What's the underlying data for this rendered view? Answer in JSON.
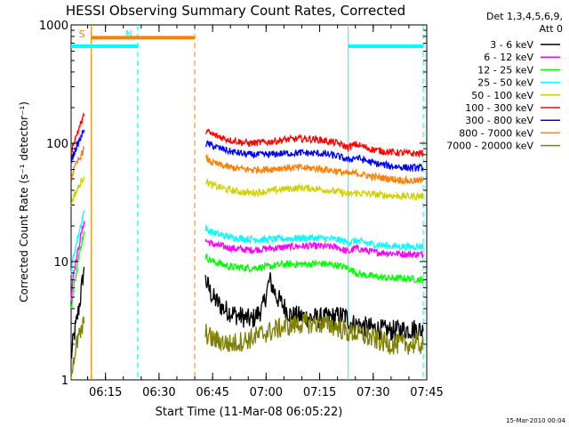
{
  "chart_data": {
    "type": "line",
    "title": "HESSI Observing Summary Count Rates, Corrected",
    "xlabel": "Start Time (11-Mar-08 06:05:22)",
    "ylabel": "Corrected Count Rate (s⁻¹ detector⁻¹)",
    "y_scale": "log",
    "ylim": [
      1,
      1000
    ],
    "xlim": [
      "06:05:22",
      "07:45:00"
    ],
    "x_ticks": [
      "06:15",
      "06:30",
      "06:45",
      "07:00",
      "07:15",
      "07:30",
      "07:45"
    ],
    "y_ticks": [
      "1",
      "10",
      "100",
      "1000"
    ],
    "legend": {
      "placement": "right",
      "header": [
        "Det 1,3,4,5,6,9,",
        "Att 0"
      ],
      "entries": [
        {
          "label": "3 - 6 keV",
          "color": "#000000"
        },
        {
          "label": "6 - 12 keV",
          "color": "#ff00ff"
        },
        {
          "label": "12 - 25 keV",
          "color": "#00ff00"
        },
        {
          "label": "25 - 50 keV",
          "color": "#00ffff"
        },
        {
          "label": "50 - 100 keV",
          "color": "#d0d000"
        },
        {
          "label": "100 - 300 keV",
          "color": "#ff0000"
        },
        {
          "label": "300 - 800 keV",
          "color": "#0000ff"
        },
        {
          "label": "800 - 7000 keV",
          "color": "#ff8000"
        },
        {
          "label": "7000 - 20000 keV",
          "color": "#808000"
        }
      ]
    },
    "series": [
      {
        "name": "3 - 6 keV",
        "segments": [
          {
            "x": [
              "06:05:22",
              "06:06:00",
              "06:07:00",
              "06:08:00",
              "06:09:00"
            ],
            "y": [
              1.5,
              2.2,
              3.2,
              5,
              9
            ]
          },
          {
            "x": [
              "06:43:00",
              "06:45:00",
              "06:48:00",
              "06:52:00",
              "06:56:00",
              "06:59:00",
              "07:01:00",
              "07:03:00",
              "07:07:00",
              "07:15:00",
              "07:22:00",
              "07:24:00",
              "07:28:00",
              "07:34:00",
              "07:42:00",
              "07:44:00"
            ],
            "y": [
              7,
              5,
              4,
              3.5,
              3.2,
              4,
              7,
              5,
              3.5,
              3.3,
              3.5,
              3,
              2.8,
              2.6,
              2.7,
              2.6
            ]
          }
        ]
      },
      {
        "name": "6 - 12 keV",
        "segments": [
          {
            "x": [
              "06:05:22",
              "06:06:00",
              "06:07:00",
              "06:08:00",
              "06:09:00"
            ],
            "y": [
              5,
              8,
              11,
              16,
              22
            ]
          },
          {
            "x": [
              "06:43:00",
              "06:45:00",
              "06:50:00",
              "06:55:00",
              "07:00:00",
              "07:05:00",
              "07:10:00",
              "07:15:00",
              "07:20:00",
              "07:23:00",
              "07:25:00",
              "07:30:00",
              "07:35:00",
              "07:40:00",
              "07:44:00"
            ],
            "y": [
              15,
              14,
              13,
              12.5,
              12.8,
              13.2,
              13.5,
              13.5,
              13.2,
              12,
              13,
              12,
              11.8,
              11.5,
              11.5
            ]
          }
        ]
      },
      {
        "name": "12 - 25 keV",
        "segments": [
          {
            "x": [
              "06:05:22",
              "06:06:00",
              "06:07:00",
              "06:08:00",
              "06:09:00"
            ],
            "y": [
              4,
              6,
              9,
              13,
              18
            ]
          },
          {
            "x": [
              "06:43:00",
              "06:45:00",
              "06:50:00",
              "06:55:00",
              "07:00:00",
              "07:05:00",
              "07:10:00",
              "07:15:00",
              "07:20:00",
              "07:23:00",
              "07:26:00",
              "07:30:00",
              "07:35:00",
              "07:40:00",
              "07:44:00"
            ],
            "y": [
              11,
              10,
              9,
              8.8,
              9,
              9.5,
              9.5,
              9.6,
              9.3,
              8.8,
              7.8,
              7.5,
              7.2,
              7.2,
              7
            ]
          }
        ]
      },
      {
        "name": "25 - 50 keV",
        "segments": [
          {
            "x": [
              "06:05:22",
              "06:06:00",
              "06:07:00",
              "06:08:00",
              "06:09:00"
            ],
            "y": [
              8,
              11,
              15,
              20,
              27
            ]
          },
          {
            "x": [
              "06:43:00",
              "06:45:00",
              "06:50:00",
              "06:55:00",
              "07:00:00",
              "07:05:00",
              "07:10:00",
              "07:15:00",
              "07:20:00",
              "07:23:00",
              "07:25:00",
              "07:30:00",
              "07:35:00",
              "07:40:00",
              "07:44:00"
            ],
            "y": [
              19,
              17.5,
              16,
              15.5,
              15.3,
              15.6,
              15.8,
              15.8,
              15.3,
              14.5,
              15,
              14,
              13.5,
              13.3,
              13.5
            ]
          }
        ]
      },
      {
        "name": "50 - 100 keV",
        "segments": [
          {
            "x": [
              "06:05:22",
              "06:06:00",
              "06:07:00",
              "06:08:00",
              "06:09:00"
            ],
            "y": [
              30,
              35,
              40,
              46,
              52
            ]
          },
          {
            "x": [
              "06:43:00",
              "06:45:00",
              "06:50:00",
              "06:55:00",
              "07:00:00",
              "07:05:00",
              "07:10:00",
              "07:15:00",
              "07:20:00",
              "07:23:00",
              "07:25:00",
              "07:30:00",
              "07:35:00",
              "07:40:00",
              "07:44:00"
            ],
            "y": [
              48,
              44,
              40,
              38,
              39,
              41,
              42,
              41,
              39,
              37,
              38,
              37,
              36,
              35.5,
              36
            ]
          }
        ]
      },
      {
        "name": "100 - 300 keV",
        "segments": [
          {
            "x": [
              "06:05:22",
              "06:06:00",
              "06:07:00",
              "06:08:00",
              "06:09:00"
            ],
            "y": [
              85,
              100,
              120,
              145,
              170
            ]
          },
          {
            "x": [
              "06:43:00",
              "06:45:00",
              "06:50:00",
              "06:55:00",
              "07:00:00",
              "07:05:00",
              "07:10:00",
              "07:15:00",
              "07:20:00",
              "07:23:00",
              "07:25:00",
              "07:30:00",
              "07:35:00",
              "07:40:00",
              "07:44:00"
            ],
            "y": [
              128,
              118,
              106,
              100,
              102,
              107,
              109,
              107,
              100,
              92,
              98,
              88,
              84,
              82,
              82
            ]
          }
        ]
      },
      {
        "name": "300 - 800 keV",
        "segments": [
          {
            "x": [
              "06:05:22",
              "06:06:00",
              "06:07:00",
              "06:08:00",
              "06:09:00"
            ],
            "y": [
              70,
              80,
              95,
              110,
              130
            ]
          },
          {
            "x": [
              "06:43:00",
              "06:45:00",
              "06:50:00",
              "06:55:00",
              "07:00:00",
              "07:05:00",
              "07:10:00",
              "07:15:00",
              "07:20:00",
              "07:23:00",
              "07:25:00",
              "07:30:00",
              "07:35:00",
              "07:40:00",
              "07:44:00"
            ],
            "y": [
              100,
              95,
              85,
              80,
              80,
              82,
              83,
              82,
              78,
              72,
              76,
              68,
              64,
              62,
              62
            ]
          }
        ]
      },
      {
        "name": "800 - 7000 keV",
        "segments": [
          {
            "x": [
              "06:05:22",
              "06:06:00",
              "06:07:00",
              "06:08:00",
              "06:09:00"
            ],
            "y": [
              50,
              58,
              68,
              78,
              90
            ]
          },
          {
            "x": [
              "06:43:00",
              "06:45:00",
              "06:50:00",
              "06:55:00",
              "07:00:00",
              "07:05:00",
              "07:10:00",
              "07:15:00",
              "07:20:00",
              "07:23:00",
              "07:25:00",
              "07:30:00",
              "07:35:00",
              "07:40:00",
              "07:44:00"
            ],
            "y": [
              75,
              68,
              62,
              60,
              60,
              62,
              62,
              61,
              58,
              55,
              56,
              52,
              50,
              48,
              48
            ]
          }
        ]
      },
      {
        "name": "7000 - 20000 keV",
        "segments": [
          {
            "x": [
              "06:05:22",
              "06:06:00",
              "06:07:00",
              "06:08:00",
              "06:09:00"
            ],
            "y": [
              1.2,
              1.5,
              2,
              2.5,
              3
            ]
          },
          {
            "x": [
              "06:43:00",
              "06:45:00",
              "06:50:00",
              "06:55:00",
              "07:00:00",
              "07:05:00",
              "07:10:00",
              "07:15:00",
              "07:20:00",
              "07:23:00",
              "07:25:00",
              "07:30:00",
              "07:35:00",
              "07:40:00",
              "07:44:00"
            ],
            "y": [
              2.5,
              2.2,
              2,
              2.2,
              2.5,
              2.8,
              3,
              3,
              2.8,
              2.5,
              2.5,
              2.2,
              2,
              2,
              2
            ]
          }
        ]
      }
    ],
    "markers": [
      {
        "label": "S",
        "color": "#ff8000",
        "style": "solid",
        "x": "06:11:00"
      },
      {
        "label": "",
        "color": "#ff8000",
        "style": "dashed",
        "x": "06:40:00"
      },
      {
        "label": "N",
        "color": "#00ffff",
        "style": "dashed",
        "x": "06:24:00"
      },
      {
        "label": "",
        "color": "#00ffff",
        "style": "solid",
        "x": "07:23:00"
      },
      {
        "label": "",
        "color": "#00ffff",
        "style": "dashed",
        "x": "07:44:00"
      }
    ],
    "flag_bars": [
      {
        "color": "#ff8000",
        "from": "06:11:00",
        "to": "06:40:00",
        "y": 780
      },
      {
        "color": "#00ffff",
        "from": "06:05:22",
        "to": "06:24:00",
        "y": 660
      },
      {
        "color": "#00ffff",
        "from": "07:23:00",
        "to": "07:44:00",
        "y": 660
      }
    ]
  },
  "footer": {
    "date": "15-Mar-2010 00:04"
  }
}
